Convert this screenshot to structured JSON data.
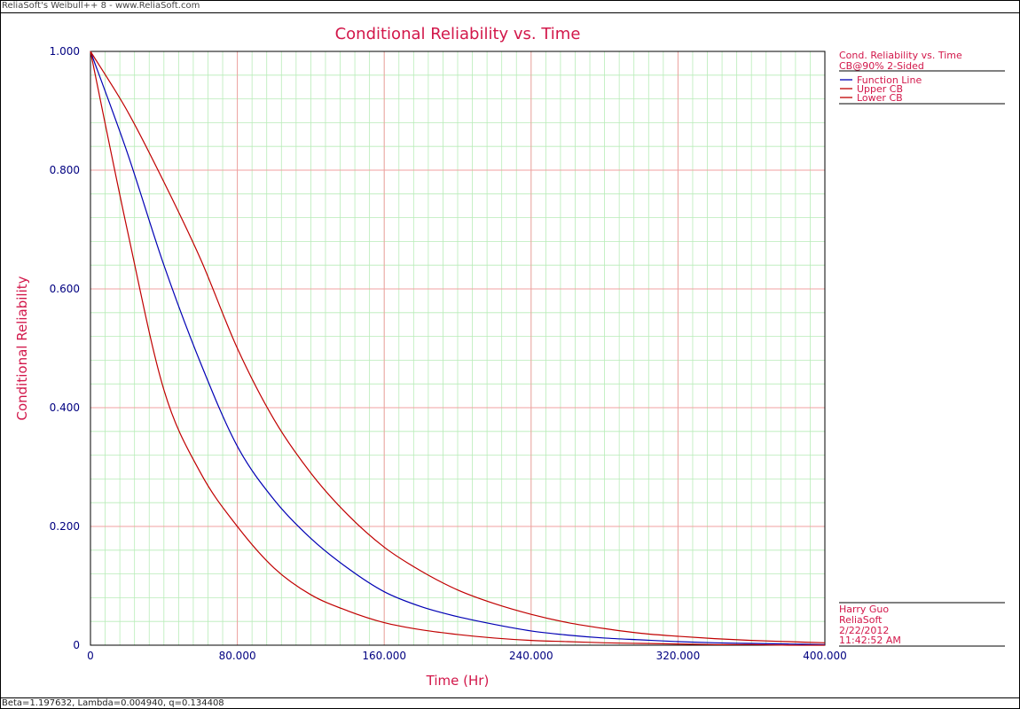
{
  "window": {
    "caption": "ReliaSoft's Weibull++ 8 - www.ReliaSoft.com",
    "status_text": "Beta=1.197632, Lambda=0.004940, q=0.134408"
  },
  "colors": {
    "title": "#d2174a",
    "axis_text": "#000080",
    "function_line": "#0000b4",
    "cb_line": "#c00000",
    "major_grid": "#f0a0a0",
    "minor_grid": "#b8ecb8"
  },
  "legend": {
    "title": "Cond. Reliability vs. Time",
    "subtitle": "CB@90% 2-Sided",
    "entries": [
      "Function Line",
      "Upper CB",
      "Lower CB"
    ]
  },
  "info": {
    "user": "Harry Guo",
    "company": "ReliaSoft",
    "date": "2/22/2012",
    "time": "11:42:52 AM"
  },
  "chart_data": {
    "type": "line",
    "title": "Conditional Reliability vs. Time",
    "xlabel": "Time (Hr)",
    "ylabel": "Conditional Reliability",
    "xlim": [
      0,
      400000
    ],
    "ylim": [
      0,
      1
    ],
    "xticks": [
      0,
      80000,
      160000,
      240000,
      320000,
      400000
    ],
    "xtick_labels": [
      "0",
      "80.000",
      "160.000",
      "240.000",
      "320.000",
      "400.000"
    ],
    "yticks": [
      0,
      0.2,
      0.4,
      0.6,
      0.8,
      1.0
    ],
    "ytick_labels": [
      "0",
      "0.200",
      "0.400",
      "0.600",
      "0.800",
      "1.000"
    ],
    "grid": true,
    "legend_position": "right",
    "x": [
      0,
      20000,
      40000,
      60000,
      80000,
      100000,
      120000,
      140000,
      160000,
      180000,
      200000,
      220000,
      240000,
      260000,
      280000,
      300000,
      320000,
      340000,
      360000,
      380000,
      400000
    ],
    "series": [
      {
        "name": "Function Line",
        "color": "#0000b4",
        "values": [
          1.0,
          0.83,
          0.64,
          0.475,
          0.335,
          0.245,
          0.18,
          0.13,
          0.09,
          0.065,
          0.048,
          0.035,
          0.024,
          0.017,
          0.012,
          0.009,
          0.006,
          0.004,
          0.003,
          0.002,
          0.001
        ]
      },
      {
        "name": "Upper CB",
        "color": "#c00000",
        "values": [
          1.0,
          0.9,
          0.78,
          0.65,
          0.5,
          0.38,
          0.29,
          0.22,
          0.165,
          0.125,
          0.093,
          0.07,
          0.052,
          0.038,
          0.028,
          0.02,
          0.015,
          0.011,
          0.008,
          0.006,
          0.004
        ]
      },
      {
        "name": "Lower CB",
        "color": "#c00000",
        "values": [
          1.0,
          0.7,
          0.43,
          0.29,
          0.2,
          0.13,
          0.085,
          0.058,
          0.038,
          0.026,
          0.018,
          0.012,
          0.008,
          0.006,
          0.004,
          0.003,
          0.002,
          0.001,
          0.001,
          0.0,
          0.0
        ]
      }
    ]
  }
}
